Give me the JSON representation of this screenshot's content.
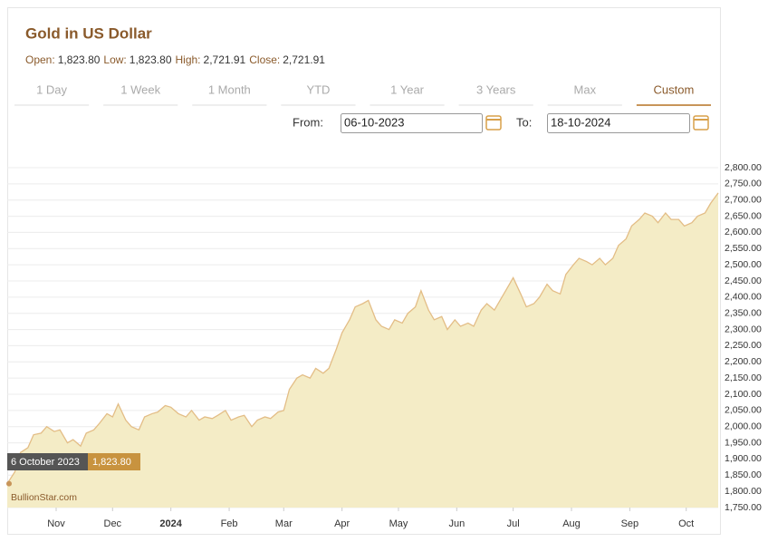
{
  "chart_data": {
    "type": "area",
    "title": "Gold in US Dollar",
    "stats": [
      {
        "label": "Open:",
        "value": "1,823.80"
      },
      {
        "label": "Low:",
        "value": "1,823.80"
      },
      {
        "label": "High:",
        "value": "2,721.91"
      },
      {
        "label": "Close:",
        "value": "2,721.91"
      }
    ],
    "tabs": [
      "1 Day",
      "1 Week",
      "1 Month",
      "YTD",
      "1 Year",
      "3 Years",
      "Max",
      "Custom"
    ],
    "selected_tab": 7,
    "from_label": "From:",
    "from_value": "06-10-2023",
    "to_label": "To:",
    "to_value": "18-10-2024",
    "watermark": "BullionStar.com",
    "tooltip": {
      "point": 0,
      "date": "6 October 2023",
      "value_label": "1,823.80"
    },
    "line_color": "#e3bd86",
    "fill_color": "#f4ecc6",
    "grid": true,
    "x": [
      0,
      4,
      7,
      11,
      14,
      18,
      21,
      25,
      28,
      32,
      35,
      39,
      42,
      46,
      49,
      53,
      56,
      59,
      63,
      66,
      70,
      73,
      77,
      80,
      84,
      87,
      91,
      95,
      98,
      102,
      105,
      109,
      112,
      116,
      119,
      123,
      126,
      130,
      133,
      137,
      140,
      144,
      147,
      150,
      154,
      157,
      161,
      164,
      168,
      171,
      175,
      178,
      182,
      185,
      189,
      192,
      196,
      199,
      203,
      206,
      210,
      213,
      217,
      220,
      224,
      227,
      231,
      234,
      238,
      241,
      245,
      248,
      252,
      255,
      259,
      262,
      266,
      269,
      273,
      276,
      280,
      283,
      287,
      290,
      294,
      297,
      301,
      304,
      308,
      311,
      315,
      318,
      322,
      325,
      329,
      332,
      336,
      339,
      343,
      346,
      350,
      353,
      357,
      360,
      364,
      367,
      371,
      374,
      378
    ],
    "values": [
      1823.8,
      1860,
      1920,
      1935,
      1975,
      1980,
      2000,
      1985,
      1990,
      1950,
      1960,
      1940,
      1980,
      1990,
      2010,
      2040,
      2030,
      2070,
      2020,
      2000,
      1990,
      2030,
      2040,
      2045,
      2065,
      2060,
      2040,
      2030,
      2050,
      2020,
      2030,
      2025,
      2035,
      2050,
      2020,
      2030,
      2035,
      2000,
      2020,
      2030,
      2025,
      2045,
      2050,
      2115,
      2150,
      2160,
      2150,
      2180,
      2165,
      2180,
      2240,
      2290,
      2330,
      2370,
      2380,
      2390,
      2330,
      2310,
      2300,
      2330,
      2320,
      2350,
      2370,
      2420,
      2360,
      2330,
      2340,
      2300,
      2330,
      2310,
      2320,
      2310,
      2360,
      2380,
      2360,
      2390,
      2430,
      2460,
      2410,
      2370,
      2380,
      2400,
      2440,
      2420,
      2410,
      2470,
      2500,
      2520,
      2510,
      2500,
      2520,
      2500,
      2520,
      2560,
      2580,
      2620,
      2640,
      2660,
      2650,
      2630,
      2660,
      2640,
      2640,
      2620,
      2630,
      2650,
      2660,
      2690,
      2721.91
    ],
    "xlim": [
      0,
      378
    ],
    "xticks": [
      {
        "value": 26,
        "label": "Nov"
      },
      {
        "value": 56,
        "label": "Dec"
      },
      {
        "value": 87,
        "label": "2024"
      },
      {
        "value": 118,
        "label": "Feb"
      },
      {
        "value": 147,
        "label": "Mar"
      },
      {
        "value": 178,
        "label": "Apr"
      },
      {
        "value": 208,
        "label": "May"
      },
      {
        "value": 239,
        "label": "Jun"
      },
      {
        "value": 269,
        "label": "Jul"
      },
      {
        "value": 300,
        "label": "Aug"
      },
      {
        "value": 331,
        "label": "Sep"
      },
      {
        "value": 361,
        "label": "Oct"
      }
    ],
    "ylim": [
      1750,
      2800
    ],
    "yticks": [
      {
        "value": 1750,
        "label": "1,750.00"
      },
      {
        "value": 1800,
        "label": "1,800.00"
      },
      {
        "value": 1850,
        "label": "1,850.00"
      },
      {
        "value": 1900,
        "label": "1,900.00"
      },
      {
        "value": 1950,
        "label": "1,950.00"
      },
      {
        "value": 2000,
        "label": "2,000.00"
      },
      {
        "value": 2050,
        "label": "2,050.00"
      },
      {
        "value": 2100,
        "label": "2,100.00"
      },
      {
        "value": 2150,
        "label": "2,150.00"
      },
      {
        "value": 2200,
        "label": "2,200.00"
      },
      {
        "value": 2250,
        "label": "2,250.00"
      },
      {
        "value": 2300,
        "label": "2,300.00"
      },
      {
        "value": 2350,
        "label": "2,350.00"
      },
      {
        "value": 2400,
        "label": "2,400.00"
      },
      {
        "value": 2450,
        "label": "2,450.00"
      },
      {
        "value": 2500,
        "label": "2,500.00"
      },
      {
        "value": 2550,
        "label": "2,550.00"
      },
      {
        "value": 2600,
        "label": "2,600.00"
      },
      {
        "value": 2650,
        "label": "2,650.00"
      },
      {
        "value": 2700,
        "label": "2,700.00"
      },
      {
        "value": 2750,
        "label": "2,750.00"
      },
      {
        "value": 2800,
        "label": "2,800.00"
      }
    ]
  }
}
